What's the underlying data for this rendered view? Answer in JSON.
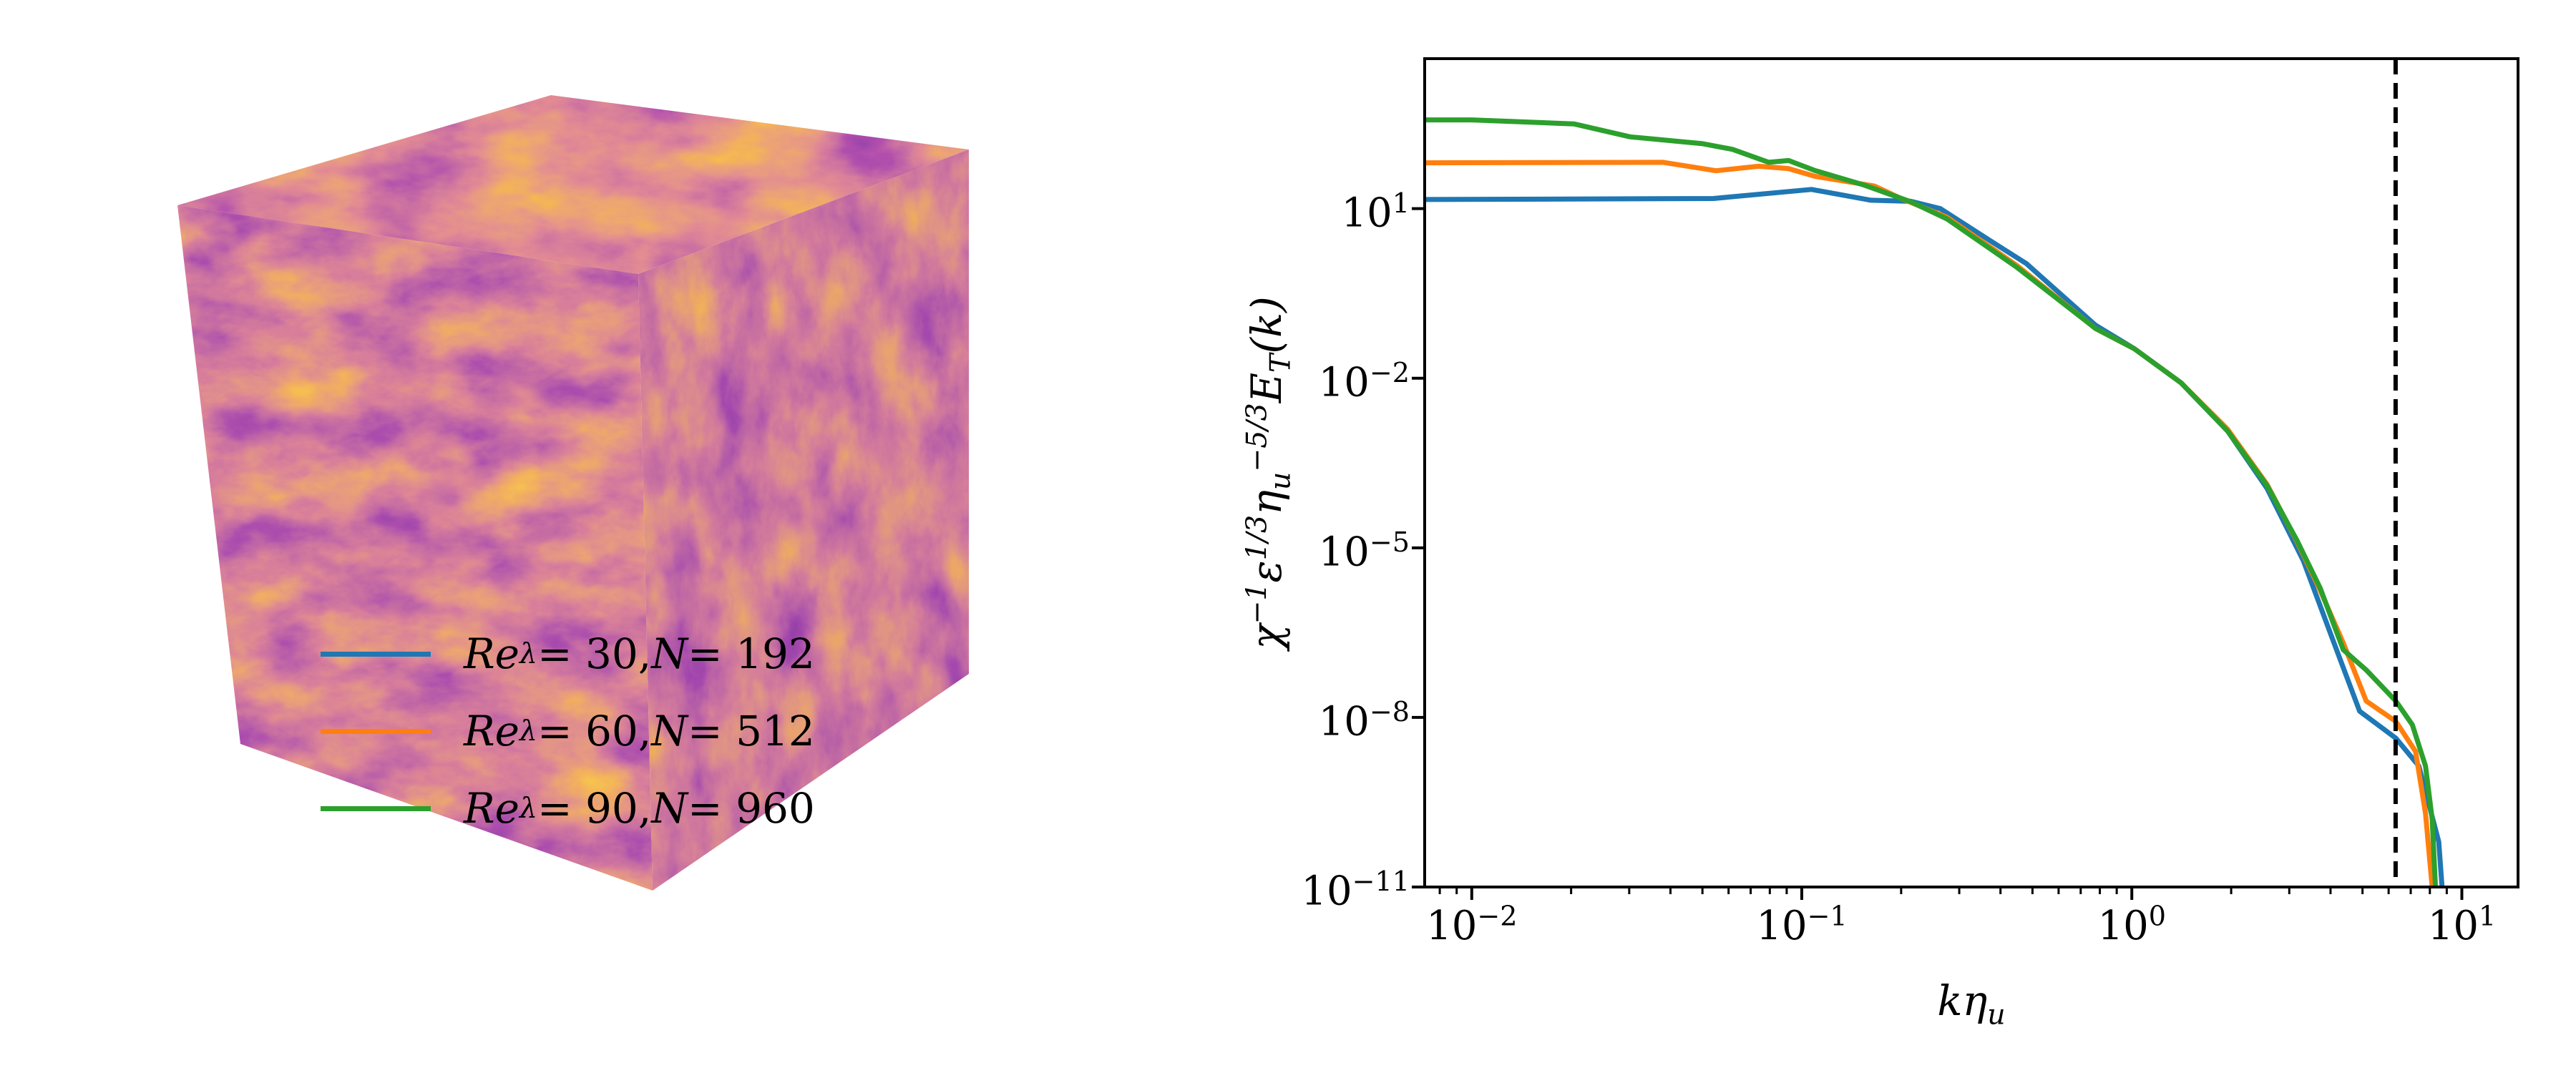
{
  "colors": {
    "blue": "#1f77b4",
    "orange": "#ff7f0e",
    "green": "#2ca02c",
    "axis": "#000000"
  },
  "cube_visualization": {
    "description_icon": "turbulence-cube-icon",
    "colormap": "inferno"
  },
  "chart_data": {
    "type": "line",
    "xscale": "log",
    "yscale": "log",
    "xlim": [
      0.0072,
      14.8
    ],
    "ylim": [
      1e-11,
      4500
    ],
    "xlabel": {
      "main": "k",
      "sym": "η",
      "sub": "u"
    },
    "ylabel": {
      "chi": "χ",
      "chi_exp": "−1",
      "eps": "ε",
      "eps_exp": "1/3",
      "eta": "η",
      "eta_sub": "u",
      "eta_exp": "−5/3",
      "E": "E",
      "E_sub": "T",
      "arg": "(k)"
    },
    "xticks": [
      {
        "value": 0.01,
        "base": "10",
        "exp": "−2"
      },
      {
        "value": 0.1,
        "base": "10",
        "exp": "−1"
      },
      {
        "value": 1,
        "base": "10",
        "exp": "0"
      },
      {
        "value": 10,
        "base": "10",
        "exp": "1"
      }
    ],
    "yticks": [
      {
        "value": 10,
        "base": "10",
        "exp": "1"
      },
      {
        "value": 0.01,
        "base": "10",
        "exp": "−2"
      },
      {
        "value": 1e-05,
        "base": "10",
        "exp": "−5"
      },
      {
        "value": 1e-08,
        "base": "10",
        "exp": "−8"
      },
      {
        "value": 1e-11,
        "base": "10",
        "exp": "−11"
      }
    ],
    "vline": {
      "x": 6.3,
      "style": "dashed",
      "color": "#000000"
    },
    "legend_position": "lower-left",
    "series": [
      {
        "name": "Re_λ = 30, N = 192",
        "label": {
          "re": "Re",
          "lam": "λ",
          "val": " = 30, ",
          "N": "N",
          "nval": " = 192"
        },
        "color": "#1f77b4",
        "x": [
          0.0072,
          0.054,
          0.107,
          0.162,
          0.214,
          0.263,
          0.38,
          0.479,
          0.776,
          1.02,
          1.41,
          1.95,
          2.57,
          3.31,
          4.17,
          4.9,
          6.31,
          7.41,
          8.51,
          8.71
        ],
        "y": [
          14.5,
          15.1,
          21.9,
          14.1,
          13.5,
          10,
          2.51,
          1.07,
          0.087,
          0.033,
          0.0083,
          0.00117,
          0.000112,
          5.9e-06,
          1.58e-07,
          1.29e-08,
          4.3e-09,
          1.38e-09,
          6.3e-11,
          1e-11
        ]
      },
      {
        "name": "Re_λ = 60, N = 512",
        "label": {
          "re": "Re",
          "lam": "λ",
          "val": " = 60, ",
          "N": "N",
          "nval": " = 512"
        },
        "color": "#ff7f0e",
        "x": [
          0.0072,
          0.038,
          0.055,
          0.074,
          0.091,
          0.11,
          0.166,
          0.2,
          0.275,
          0.447,
          0.776,
          1.02,
          1.41,
          1.95,
          2.57,
          3.16,
          3.72,
          4.37,
          5.13,
          6.31,
          7.24,
          7.76,
          8.13
        ],
        "y": [
          64.6,
          66.1,
          46.8,
          56.2,
          51.3,
          37.2,
          25.1,
          15.1,
          7.08,
          1.0,
          0.076,
          0.033,
          0.0083,
          0.00126,
          0.000132,
          1.32e-05,
          1.78e-06,
          2.09e-07,
          1.95e-08,
          8.5e-09,
          2.5e-09,
          2e-10,
          1e-11
        ]
      },
      {
        "name": "Re_λ = 90, N = 960",
        "label": {
          "re": "Re",
          "lam": "λ",
          "val": " = 90, ",
          "N": "N",
          "nval": " = 960"
        },
        "color": "#2ca02c",
        "x": [
          0.0072,
          0.01,
          0.0204,
          0.0302,
          0.0501,
          0.0617,
          0.0794,
          0.0912,
          0.11,
          0.155,
          0.214,
          0.275,
          0.447,
          0.776,
          1.02,
          1.41,
          1.95,
          2.57,
          3.16,
          3.72,
          4.37,
          5.13,
          6.31,
          7.08,
          7.76,
          8.13,
          8.32
        ],
        "y": [
          372,
          372,
          316,
          186,
          141,
          112,
          66,
          71,
          47,
          26,
          13.2,
          6.6,
          0.93,
          0.076,
          0.033,
          0.0083,
          0.00117,
          0.000126,
          1.38e-05,
          1.95e-06,
          1.58e-07,
          6.9e-08,
          1.95e-08,
          7.4e-09,
          1.38e-09,
          1.58e-10,
          1e-11
        ]
      }
    ]
  }
}
